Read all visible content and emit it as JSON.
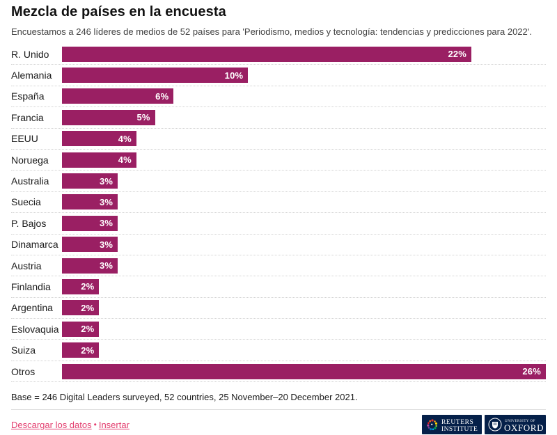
{
  "header": {
    "title": "Mezcla de países en la encuesta",
    "subtitle": "Encuestamos a 246 líderes de medios de 52 países para 'Periodismo, medios y tecnología: tendencias y predicciones para 2022'."
  },
  "chart_data": {
    "type": "bar",
    "orientation": "horizontal",
    "title": "Mezcla de países en la encuesta",
    "categories": [
      "R. Unido",
      "Alemania",
      "España",
      "Francia",
      "EEUU",
      "Noruega",
      "Australia",
      "Suecia",
      "P. Bajos",
      "Dinamarca",
      "Austria",
      "Finlandia",
      "Argentina",
      "Eslovaquia",
      "Suiza",
      "Otros"
    ],
    "values": [
      22,
      10,
      6,
      5,
      4,
      4,
      3,
      3,
      3,
      3,
      3,
      2,
      2,
      2,
      2,
      26
    ],
    "value_labels": [
      "22%",
      "10%",
      "6%",
      "5%",
      "4%",
      "4%",
      "3%",
      "3%",
      "3%",
      "3%",
      "3%",
      "2%",
      "2%",
      "2%",
      "2%",
      "26%"
    ],
    "xlim": [
      0,
      26
    ],
    "xlabel": "",
    "ylabel": "",
    "grid": false,
    "legend": "none",
    "bar_color": "#9a1f63"
  },
  "footer": {
    "base_note": "Base = 246 Digital Leaders surveyed, 52 countries, 25 November–20 December 2021.",
    "download_label": "Descargar los datos",
    "separator": "•",
    "embed_label": "Insertar",
    "link_color": "#e33e6f"
  },
  "logos": {
    "bg_color": "#052049",
    "reuters_line1": "REUTERS",
    "reuters_line2": "INSTITUTE",
    "oxford_line1": "UNIVERSITY OF",
    "oxford_line2": "OXFORD"
  }
}
